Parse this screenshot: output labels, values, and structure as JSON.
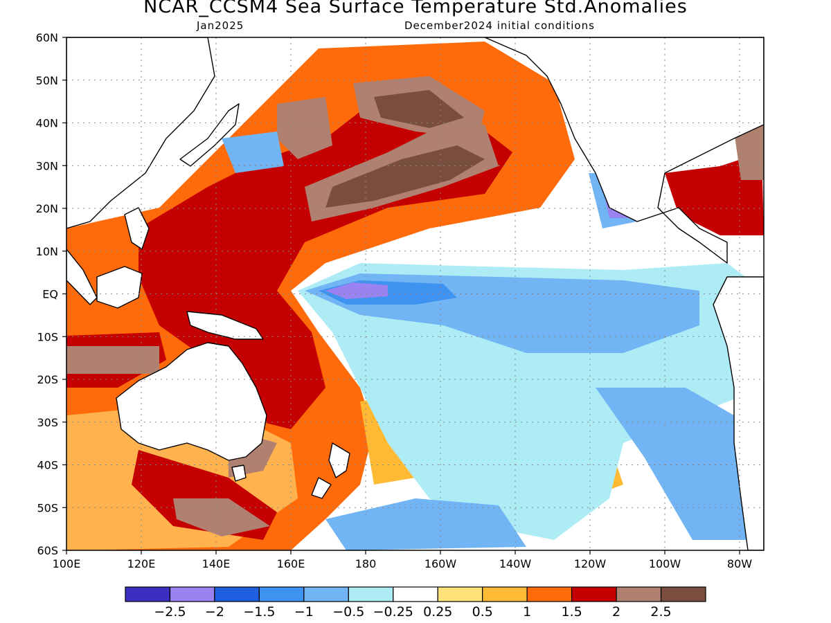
{
  "title": "NCAR_CCSM4 Sea Surface Temperature Std.Anomalies",
  "subtitle_left": "Jan2025",
  "subtitle_right": "December2024 initial conditions",
  "lat_labels": [
    "60N",
    "50N",
    "40N",
    "30N",
    "20N",
    "10N",
    "EQ",
    "10S",
    "20S",
    "30S",
    "40S",
    "50S",
    "60S"
  ],
  "lon_labels": [
    "100E",
    "120E",
    "140E",
    "160E",
    "180",
    "160W",
    "140W",
    "120W",
    "100W",
    "80W"
  ],
  "colorbar": {
    "colors": [
      "#3a2fbe",
      "#9a82f0",
      "#1f5fe0",
      "#3f93f0",
      "#72b5f4",
      "#aeecf5",
      "#ffffff",
      "#ffe37a",
      "#ffba35",
      "#ff6a0a",
      "#c40000",
      "#b08070",
      "#7a4e3e"
    ],
    "labels": [
      "−2.5",
      "−2",
      "−1.5",
      "−1",
      "−0.5",
      "−0.25",
      "0.25",
      "0.5",
      "1",
      "1.5",
      "2",
      "2.5"
    ]
  },
  "land_color": "#ffffff",
  "grid": "dotted"
}
